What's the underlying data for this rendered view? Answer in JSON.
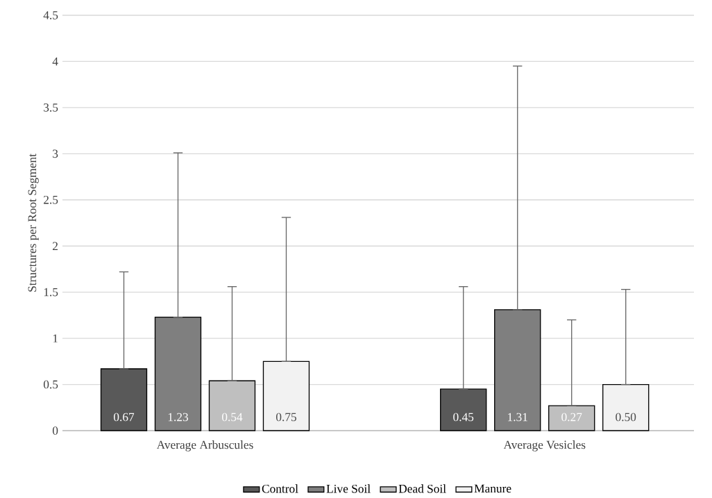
{
  "chart_data": {
    "type": "bar",
    "ylabel": "Structures per Root Segment",
    "categories": [
      "Average Arbuscules",
      "Average Vesicles"
    ],
    "series": [
      {
        "name": "Control",
        "color": "#595959",
        "values": [
          0.67,
          0.45
        ],
        "errors": [
          [
            0.67,
            1.72
          ],
          [
            0.45,
            1.56
          ]
        ],
        "value_labels": [
          "0.67",
          "0.45"
        ]
      },
      {
        "name": "Live Soil",
        "color": "#7f7f7f",
        "values": [
          1.23,
          1.31
        ],
        "errors": [
          [
            1.23,
            3.01
          ],
          [
            1.31,
            3.95
          ]
        ],
        "value_labels": [
          "1.23",
          "1.31"
        ]
      },
      {
        "name": "Dead Soil",
        "color": "#bfbfbf",
        "values": [
          0.54,
          0.27
        ],
        "errors": [
          [
            0.54,
            1.56
          ],
          [
            0.27,
            1.2
          ]
        ],
        "value_labels": [
          "0.54",
          "0.27"
        ]
      },
      {
        "name": "Manure",
        "color": "#f2f2f2",
        "values": [
          0.75,
          0.5
        ],
        "errors": [
          [
            0.75,
            2.31
          ],
          [
            0.5,
            1.53
          ]
        ],
        "value_labels": [
          "0.75",
          "0.50"
        ]
      }
    ],
    "ylim": [
      0,
      4.5
    ],
    "yticks": [
      0,
      0.5,
      1,
      1.5,
      2,
      2.5,
      3,
      3.5,
      4,
      4.5
    ],
    "grid": "y",
    "legend": "bottom"
  }
}
